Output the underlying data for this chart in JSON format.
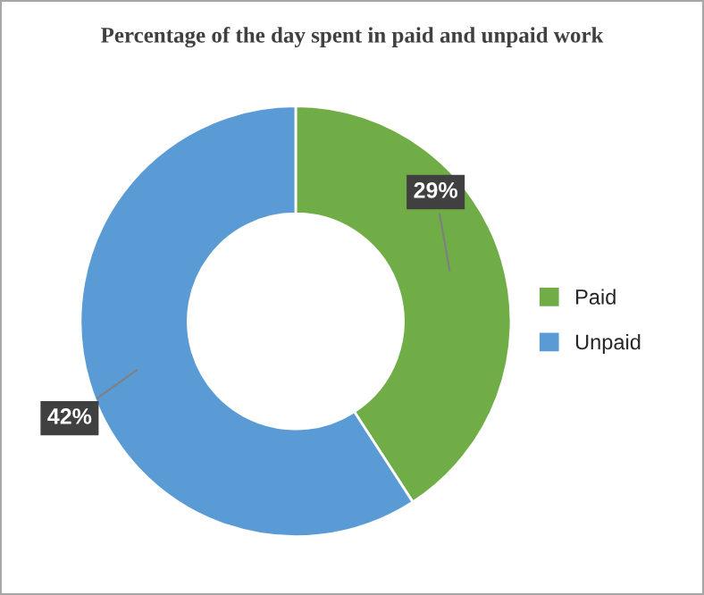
{
  "chart_data": {
    "type": "donut",
    "title": "Percentage of the day spent in paid and unpaid work",
    "categories": [
      "Paid",
      "Unpaid"
    ],
    "values": [
      29,
      42
    ],
    "colors": [
      "#70ad47",
      "#5b9bd5"
    ],
    "value_labels": [
      "29%",
      "42%"
    ],
    "legend": "right"
  }
}
